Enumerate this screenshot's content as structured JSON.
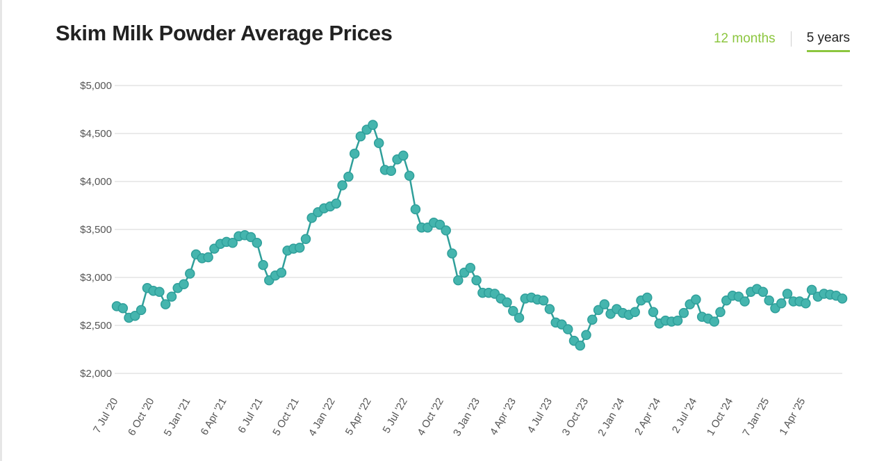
{
  "page": {
    "title": "Skim Milk Powder Average Prices"
  },
  "tabs": {
    "twelve_months": "12 months",
    "five_years": "5 years",
    "active": "5 years"
  },
  "colors": {
    "accent": "#8cc63f",
    "line": "#2f9f9a",
    "marker": "#45b5ae",
    "grid": "#e3e3e3"
  },
  "chart_data": {
    "type": "line",
    "title": "Skim Milk Powder Average Prices",
    "xlabel": "",
    "ylabel": "",
    "ylim": [
      2000,
      5000
    ],
    "y_ticks": [
      2000,
      2500,
      3000,
      3500,
      4000,
      4500,
      5000
    ],
    "y_tick_labels": [
      "$2,000",
      "$2,500",
      "$3,000",
      "$3,500",
      "$4,000",
      "$4,500",
      "$5,000"
    ],
    "x_tick_labels": [
      "7 Jul '20",
      "6 Oct '20",
      "5 Jan '21",
      "6 Apr '21",
      "6 Jul '21",
      "5 Oct '21",
      "4 Jan '22",
      "5 Apr '22",
      "5 Jul '22",
      "4 Oct '22",
      "3 Jan '23",
      "4 Apr '23",
      "4 Jul '23",
      "3 Oct '23",
      "2 Jan '24",
      "2 Apr '24",
      "2 Jul '24",
      "1 Oct '24",
      "7 Jan '25",
      "1 Apr '25"
    ],
    "grid": true,
    "legend": "none",
    "series": [
      {
        "name": "Skim Milk Powder",
        "values": [
          2700,
          2680,
          2580,
          2600,
          2660,
          2890,
          2860,
          2850,
          2720,
          2800,
          2890,
          2930,
          3040,
          3240,
          3200,
          3210,
          3300,
          3350,
          3370,
          3360,
          3430,
          3440,
          3420,
          3360,
          3130,
          2970,
          3020,
          3050,
          3280,
          3300,
          3310,
          3400,
          3620,
          3680,
          3720,
          3740,
          3770,
          3960,
          4050,
          4290,
          4470,
          4540,
          4590,
          4400,
          4120,
          4110,
          4230,
          4270,
          4060,
          3710,
          3520,
          3520,
          3570,
          3550,
          3490,
          3250,
          2970,
          3050,
          3100,
          2970,
          2840,
          2840,
          2830,
          2780,
          2740,
          2650,
          2580,
          2780,
          2790,
          2770,
          2760,
          2670,
          2530,
          2510,
          2460,
          2340,
          2290,
          2400,
          2560,
          2660,
          2720,
          2620,
          2670,
          2630,
          2610,
          2640,
          2760,
          2790,
          2640,
          2520,
          2550,
          2540,
          2550,
          2630,
          2720,
          2770,
          2590,
          2570,
          2540,
          2640,
          2760,
          2810,
          2800,
          2750,
          2850,
          2880,
          2850,
          2760,
          2680,
          2730,
          2830,
          2750,
          2750,
          2730,
          2870,
          2800,
          2830,
          2820,
          2810,
          2780
        ]
      }
    ]
  }
}
